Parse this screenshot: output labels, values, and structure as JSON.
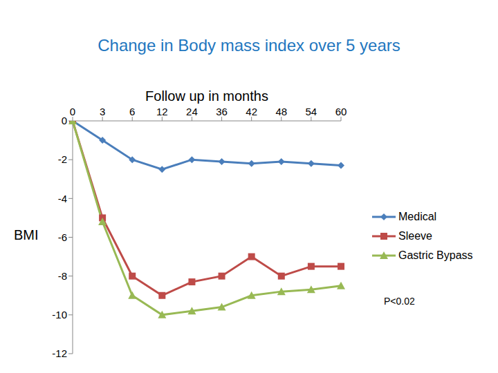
{
  "chart_data": {
    "type": "line",
    "title": "Change in Body mass index over 5 years",
    "x_label": "Follow up in months",
    "y_label": "BMI",
    "categories": [
      "0",
      "3",
      "6",
      "12",
      "24",
      "36",
      "42",
      "48",
      "54",
      "60"
    ],
    "series": [
      {
        "name": "Medical",
        "color": "#4a7ebb",
        "marker": "diamond",
        "values": [
          0,
          -1,
          -2,
          -2.5,
          -2,
          -2.1,
          -2.2,
          -2.1,
          -2.2,
          -2.3
        ]
      },
      {
        "name": "Sleeve",
        "color": "#be4b48",
        "marker": "square",
        "values": [
          0,
          -5,
          -8,
          -9,
          -8.3,
          -8,
          -7,
          -8,
          -7.5,
          -7.5
        ]
      },
      {
        "name": "Gastric Bypass",
        "color": "#98b954",
        "marker": "triangle",
        "values": [
          0,
          -5.2,
          -9,
          -10,
          -9.8,
          -9.6,
          -9,
          -8.8,
          -8.7,
          -8.5
        ]
      }
    ],
    "ylim": [
      -12,
      0
    ],
    "yticks": [
      0,
      -2,
      -4,
      -6,
      -8,
      -10,
      -12
    ],
    "grid": false,
    "legend": "right",
    "annotations": [
      "P<0.02"
    ]
  }
}
